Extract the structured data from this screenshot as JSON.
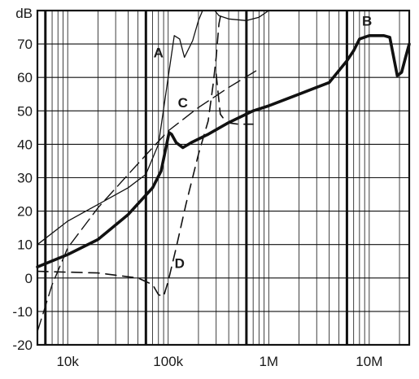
{
  "chart_data": {
    "type": "line",
    "title": "",
    "xlabel": "",
    "ylabel": "dB",
    "x_scale": "log",
    "xlim": [
      5000,
      25000000
    ],
    "ylim": [
      -20,
      80
    ],
    "x_ticks": [
      {
        "value": 10000,
        "label": "10k"
      },
      {
        "value": 100000,
        "label": "100k"
      },
      {
        "value": 1000000,
        "label": "1M"
      },
      {
        "value": 10000000,
        "label": "10M"
      }
    ],
    "y_ticks": [
      {
        "value": 70,
        "label": "70"
      },
      {
        "value": 60,
        "label": "60"
      },
      {
        "value": 50,
        "label": "50"
      },
      {
        "value": 40,
        "label": "40"
      },
      {
        "value": 30,
        "label": "30"
      },
      {
        "value": 20,
        "label": "20"
      },
      {
        "value": 10,
        "label": "10"
      },
      {
        "value": 0,
        "label": "0"
      },
      {
        "value": -10,
        "label": "-10"
      },
      {
        "value": -20,
        "label": "-20"
      }
    ],
    "grid": true,
    "series": [
      {
        "name": "A",
        "style": "thin-solid",
        "label_at": {
          "x": 80000,
          "y": 66
        },
        "points": [
          {
            "x": 5000,
            "y": 10
          },
          {
            "x": 10000,
            "y": 17
          },
          {
            "x": 20000,
            "y": 22
          },
          {
            "x": 40000,
            "y": 27
          },
          {
            "x": 60000,
            "y": 31
          },
          {
            "x": 80000,
            "y": 40
          },
          {
            "x": 100000,
            "y": 60
          },
          {
            "x": 115000,
            "y": 72.5
          },
          {
            "x": 130000,
            "y": 71.5
          },
          {
            "x": 145000,
            "y": 66
          },
          {
            "x": 175000,
            "y": 71
          },
          {
            "x": 200000,
            "y": 77
          },
          {
            "x": 220000,
            "y": 80
          }
        ]
      },
      {
        "name": "A (upper branch)",
        "style": "thin-solid",
        "points": [
          {
            "x": 290000,
            "y": 80
          },
          {
            "x": 320000,
            "y": 78.5
          },
          {
            "x": 400000,
            "y": 77.5
          },
          {
            "x": 600000,
            "y": 77
          },
          {
            "x": 800000,
            "y": 78
          },
          {
            "x": 1000000,
            "y": 80
          }
        ]
      },
      {
        "name": "B",
        "style": "thick-solid",
        "label_at": {
          "x": 9500000,
          "y": 75.5
        },
        "points": [
          {
            "x": 5000,
            "y": 3.3
          },
          {
            "x": 10000,
            "y": 7
          },
          {
            "x": 20000,
            "y": 11.5
          },
          {
            "x": 40000,
            "y": 19
          },
          {
            "x": 70000,
            "y": 27
          },
          {
            "x": 85000,
            "y": 32
          },
          {
            "x": 95000,
            "y": 39
          },
          {
            "x": 102000,
            "y": 43.5
          },
          {
            "x": 108000,
            "y": 43
          },
          {
            "x": 120000,
            "y": 40.5
          },
          {
            "x": 140000,
            "y": 39
          },
          {
            "x": 170000,
            "y": 40.5
          },
          {
            "x": 250000,
            "y": 43
          },
          {
            "x": 400000,
            "y": 46.5
          },
          {
            "x": 700000,
            "y": 50
          },
          {
            "x": 1000000,
            "y": 51.5
          },
          {
            "x": 2000000,
            "y": 55
          },
          {
            "x": 4000000,
            "y": 58.5
          },
          {
            "x": 6000000,
            "y": 65
          },
          {
            "x": 7000000,
            "y": 68
          },
          {
            "x": 8000000,
            "y": 71.5
          },
          {
            "x": 10000000,
            "y": 72.5
          },
          {
            "x": 14000000,
            "y": 72.5
          },
          {
            "x": 16000000,
            "y": 72
          },
          {
            "x": 17500000,
            "y": 66
          },
          {
            "x": 19000000,
            "y": 60.5
          },
          {
            "x": 21000000,
            "y": 61.5
          },
          {
            "x": 23000000,
            "y": 66
          },
          {
            "x": 25000000,
            "y": 70
          }
        ]
      },
      {
        "name": "C",
        "style": "long-dash",
        "label_at": {
          "x": 140000,
          "y": 51
        },
        "points": [
          {
            "x": 5000,
            "y": -16
          },
          {
            "x": 7000,
            "y": -2
          },
          {
            "x": 10000,
            "y": 9
          },
          {
            "x": 20000,
            "y": 21
          },
          {
            "x": 40000,
            "y": 31
          },
          {
            "x": 70000,
            "y": 39
          },
          {
            "x": 100000,
            "y": 44
          },
          {
            "x": 200000,
            "y": 51
          },
          {
            "x": 400000,
            "y": 57
          },
          {
            "x": 800000,
            "y": 62.5
          }
        ]
      },
      {
        "name": "D",
        "style": "dash",
        "label_at": {
          "x": 130000,
          "y": 3
        },
        "points": [
          {
            "x": 5000,
            "y": 2
          },
          {
            "x": 20000,
            "y": 1.5
          },
          {
            "x": 50000,
            "y": 0
          },
          {
            "x": 70000,
            "y": -2
          },
          {
            "x": 80000,
            "y": -5
          },
          {
            "x": 90000,
            "y": -5.5
          },
          {
            "x": 100000,
            "y": -1
          },
          {
            "x": 120000,
            "y": 9
          },
          {
            "x": 150000,
            "y": 22
          },
          {
            "x": 200000,
            "y": 37
          },
          {
            "x": 250000,
            "y": 47
          },
          {
            "x": 280000,
            "y": 58
          },
          {
            "x": 300000,
            "y": 66
          },
          {
            "x": 320000,
            "y": 76
          },
          {
            "x": 340000,
            "y": 80
          }
        ]
      },
      {
        "name": "D (lower branch)",
        "style": "dash",
        "points": [
          {
            "x": 300000,
            "y": 61
          },
          {
            "x": 330000,
            "y": 49
          },
          {
            "x": 380000,
            "y": 46.5
          },
          {
            "x": 500000,
            "y": 46
          },
          {
            "x": 700000,
            "y": 46
          }
        ]
      }
    ]
  }
}
